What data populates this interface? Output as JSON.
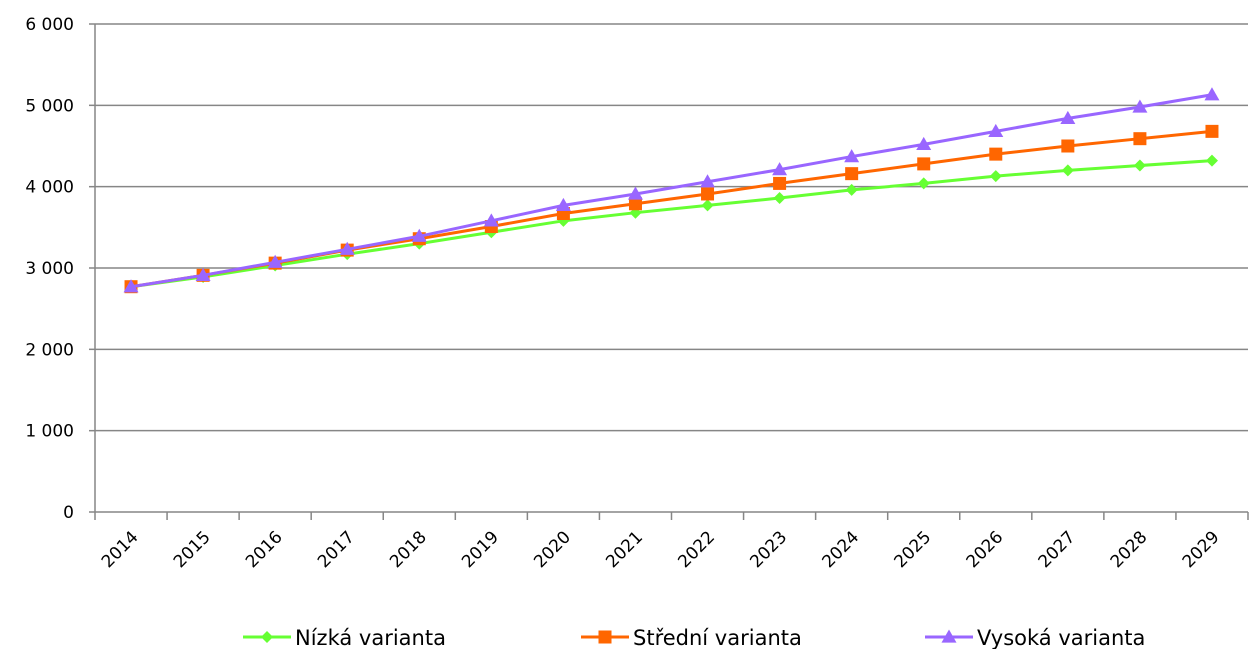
{
  "chart_data": {
    "type": "line",
    "title": "",
    "xlabel": "",
    "ylabel": "",
    "categories": [
      "2014",
      "2015",
      "2016",
      "2017",
      "2018",
      "2019",
      "2020",
      "2021",
      "2022",
      "2023",
      "2024",
      "2025",
      "2026",
      "2027",
      "2028",
      "2029"
    ],
    "ylim": [
      0,
      6000
    ],
    "yticks": [
      0,
      1000,
      2000,
      3000,
      4000,
      5000,
      6000
    ],
    "ytick_labels": [
      "0",
      "1 000",
      "2 000",
      "3 000",
      "4 000",
      "5 000",
      "6 000"
    ],
    "grid": "horizontal",
    "legend_position": "bottom",
    "series": [
      {
        "name": "Nízká varianta",
        "color": "#66ff33",
        "marker": "diamond",
        "values": [
          2770,
          2890,
          3030,
          3170,
          3300,
          3440,
          3580,
          3680,
          3770,
          3860,
          3960,
          4040,
          4130,
          4200,
          4260,
          4320
        ]
      },
      {
        "name": "Střední varianta",
        "color": "#ff6600",
        "marker": "square",
        "values": [
          2770,
          2910,
          3060,
          3220,
          3360,
          3510,
          3670,
          3790,
          3910,
          4040,
          4160,
          4280,
          4400,
          4500,
          4590,
          4680
        ]
      },
      {
        "name": "Vysoká varianta",
        "color": "#9966ff",
        "marker": "triangle",
        "values": [
          2770,
          2910,
          3070,
          3230,
          3390,
          3580,
          3770,
          3910,
          4060,
          4210,
          4370,
          4520,
          4680,
          4840,
          4980,
          5130
        ]
      }
    ]
  }
}
